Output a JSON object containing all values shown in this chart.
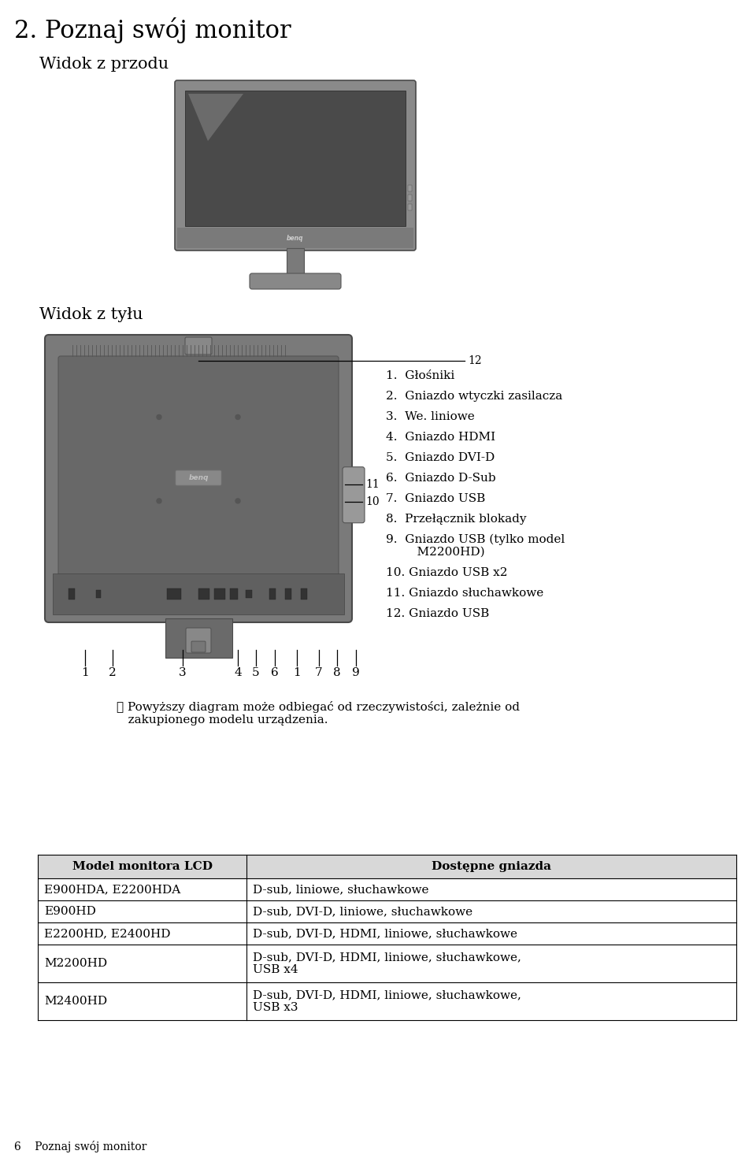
{
  "title": "2. Poznaj swój monitor",
  "subtitle1": "Widok z przodu",
  "subtitle2": "Widok z tyłu",
  "note": "✇ Powyższy diagram może odbiegać od rzeczywistości, zależnie od\n   zakupionego modelu urządzenia.",
  "items": [
    "1.  Głośniki",
    "2.  Gniazdo wtyczki zasilacza",
    "3.  We. liniowe",
    "4.  Gniazdo HDMI",
    "5.  Gniazdo DVI-D",
    "6.  Gniazdo D-Sub",
    "7.  Gniazdo USB",
    "8.  Przełącznik blokady",
    "9.  Gniazdo USB (tylko model",
    "    M2200HD)",
    "10. Gniazdo USB x2",
    "11. Gniazdo słuchawkowe",
    "12. Gniazdo USB"
  ],
  "bottom_labels": [
    "1",
    "2",
    "3",
    "4",
    "5",
    "6",
    "1",
    "7",
    "8",
    "9"
  ],
  "bottom_x": [
    108,
    143,
    232,
    302,
    325,
    349,
    377,
    405,
    428,
    452
  ],
  "table_header": [
    "Model monitora LCD",
    "Dostępne gniazda"
  ],
  "table_rows": [
    [
      "E900HDA, E2200HDA",
      "D-sub, liniowe, słuchawkowe"
    ],
    [
      "E900HD",
      "D-sub, DVI-D, liniowe, słuchawkowe"
    ],
    [
      "E2200HD, E2400HD",
      "D-sub, DVI-D, HDMI, liniowe, słuchawkowe"
    ],
    [
      "M2200HD",
      "D-sub, DVI-D, HDMI, liniowe, słuchawkowe,\nUSB x4"
    ],
    [
      "M2400HD",
      "D-sub, DVI-D, HDMI, liniowe, słuchawkowe,\nUSB x3"
    ]
  ],
  "footer": "6    Poznaj swój monitor",
  "bg_color": "#ffffff",
  "text_color": "#000000"
}
